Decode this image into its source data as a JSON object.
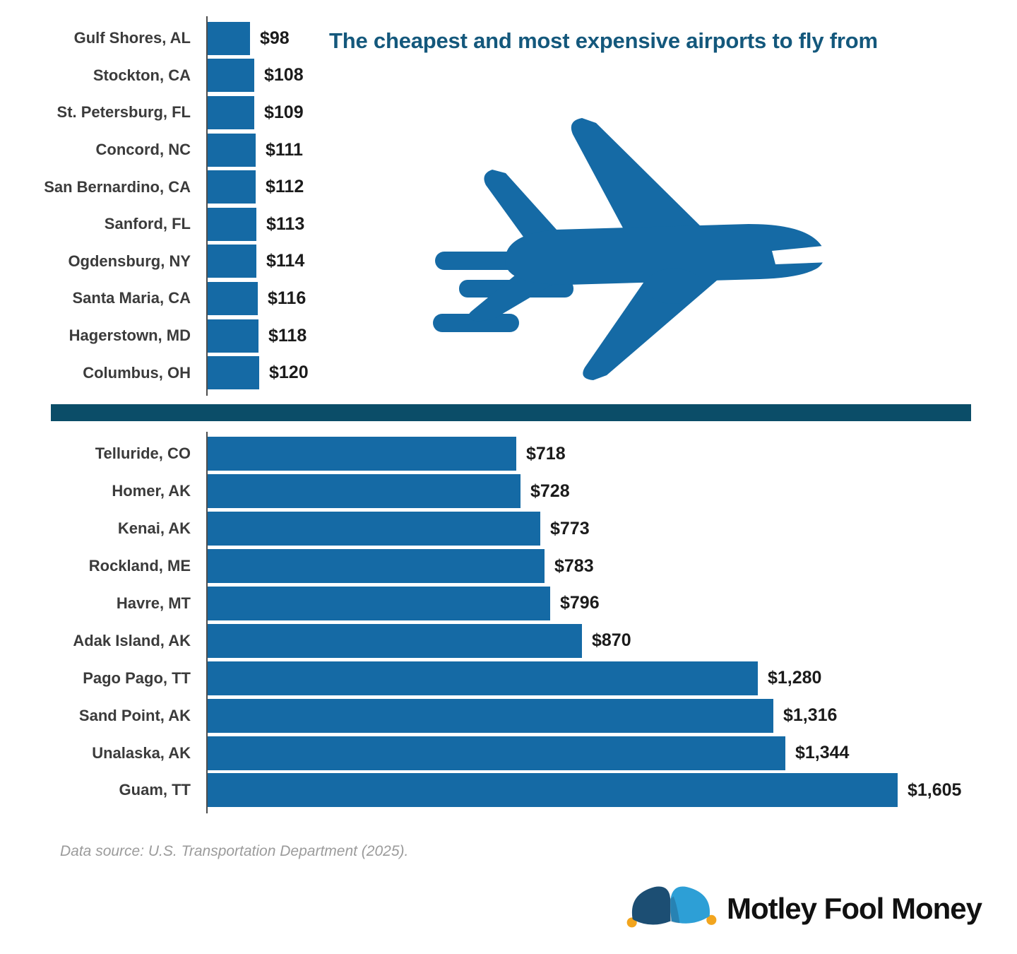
{
  "title": "The cheapest and most expensive airports to fly from",
  "source_note": "Data source: U.S. Transportation Department (2025).",
  "logo": {
    "text": "Motley Fool Money",
    "icon": "jester-hat-icon"
  },
  "icons": {
    "hero": "airplane-icon"
  },
  "colors": {
    "bar": "#156aa5",
    "title": "#14587c",
    "divider": "#0b4d68",
    "axis": "#4d4d4d",
    "label_text": "#3b3b3b",
    "value_text": "#1b1b1b",
    "source_text": "#9b9b9b",
    "hat_dark": "#1c4e73",
    "hat_light": "#2d9fd6",
    "hat_gold": "#f2a51e"
  },
  "chart_data": [
    {
      "type": "bar",
      "group": "cheapest",
      "orientation": "horizontal",
      "unit": "USD",
      "xlim": [
        0,
        1605
      ],
      "grid": false,
      "legend": "none",
      "categories": [
        "Gulf Shores, AL",
        "Stockton, CA",
        "St. Petersburg, FL",
        "Concord, NC",
        "San Bernardino, CA",
        "Sanford, FL",
        "Ogdensburg, NY",
        "Santa Maria, CA",
        "Hagerstown, MD",
        "Columbus, OH"
      ],
      "values": [
        98,
        108,
        109,
        111,
        112,
        113,
        114,
        116,
        118,
        120
      ],
      "value_labels": [
        "$98",
        "$108",
        "$109",
        "$111",
        "$112",
        "$113",
        "$114",
        "$116",
        "$118",
        "$120"
      ]
    },
    {
      "type": "bar",
      "group": "most_expensive",
      "orientation": "horizontal",
      "unit": "USD",
      "xlim": [
        0,
        1605
      ],
      "grid": false,
      "legend": "none",
      "categories": [
        "Telluride, CO",
        "Homer, AK",
        "Kenai, AK",
        "Rockland, ME",
        "Havre, MT",
        "Adak Island, AK",
        "Pago Pago, TT",
        "Sand Point, AK",
        "Unalaska, AK",
        "Guam, TT"
      ],
      "values": [
        718,
        728,
        773,
        783,
        796,
        870,
        1280,
        1316,
        1344,
        1605
      ],
      "value_labels": [
        "$718",
        "$728",
        "$773",
        "$783",
        "$796",
        "$870",
        "$1,280",
        "$1,316",
        "$1,344",
        "$1,605"
      ]
    }
  ]
}
